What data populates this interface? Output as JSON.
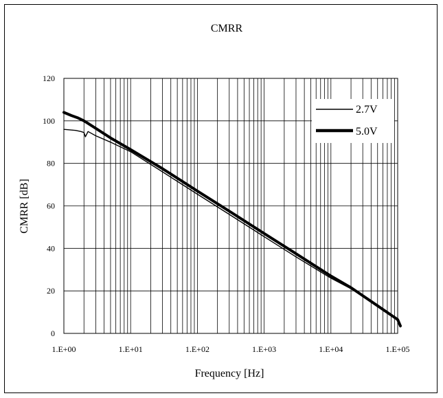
{
  "chart_data": {
    "type": "line",
    "title": "CMRR",
    "xlabel": "Frequency [Hz]",
    "ylabel": "CMRR [dB]",
    "x_scale": "log",
    "xlim": [
      1,
      100000
    ],
    "ylim": [
      0,
      120
    ],
    "x_ticks": [
      "1.E+00",
      "1.E+01",
      "1.E+02",
      "1.E+03",
      "1.E+04",
      "1.E+05"
    ],
    "y_ticks": [
      "0",
      "20",
      "40",
      "60",
      "80",
      "100",
      "120"
    ],
    "grid": true,
    "legend_position": "top-right",
    "series": [
      {
        "name": "2.7V",
        "color": "#000000",
        "line_style": "thin",
        "x": [
          1,
          1.5,
          1.8,
          2.0,
          2.1,
          2.3,
          3,
          5,
          10,
          30,
          100,
          300,
          1000,
          3000,
          10000,
          20000,
          50000,
          100000,
          110000
        ],
        "y": [
          96,
          95.5,
          95,
          94.5,
          92.5,
          95,
          93,
          90,
          85.5,
          76,
          65.5,
          56,
          45.5,
          36,
          26,
          21,
          13,
          6,
          3
        ]
      },
      {
        "name": "5.0V",
        "color": "#000000",
        "line_style": "thick",
        "x": [
          1,
          1.3,
          1.6,
          2,
          3,
          5,
          10,
          30,
          100,
          300,
          1000,
          3000,
          10000,
          20000,
          50000,
          100000,
          110000
        ],
        "y": [
          104,
          102.5,
          101.5,
          100,
          96.5,
          92,
          86.5,
          77.5,
          67,
          57.5,
          47,
          37.5,
          27,
          21.5,
          13,
          6.5,
          3.5
        ]
      }
    ]
  }
}
